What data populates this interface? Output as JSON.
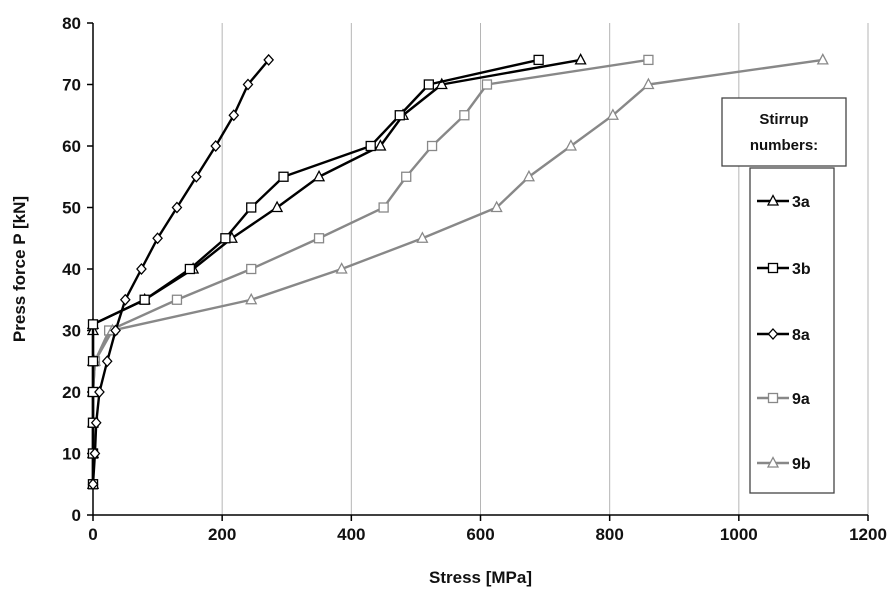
{
  "chart_data": {
    "type": "line",
    "xlabel": "Stress [MPa]",
    "ylabel": "Press force P [kN]",
    "xlim": [
      0,
      1200
    ],
    "ylim": [
      0,
      80
    ],
    "xticks": [
      0,
      200,
      400,
      600,
      800,
      1000,
      1200
    ],
    "yticks": [
      0,
      10,
      20,
      30,
      40,
      50,
      60,
      70,
      80
    ],
    "xtick_labels": [
      "0",
      "200",
      "400",
      "600",
      "800",
      "1000",
      "1200"
    ],
    "ytick_labels": [
      "0",
      "10",
      "20",
      "30",
      "40",
      "50",
      "60",
      "70",
      "80"
    ],
    "grid": "vertical",
    "legend": {
      "title_lines": [
        "Stirrup",
        "numbers:"
      ],
      "placement": "right"
    },
    "series": [
      {
        "name": "3a",
        "color": "#000000",
        "marker": "triangle",
        "points": [
          [
            0,
            5
          ],
          [
            0,
            10
          ],
          [
            0,
            15
          ],
          [
            0,
            20
          ],
          [
            0,
            25
          ],
          [
            0,
            30
          ],
          [
            0,
            31
          ],
          [
            80,
            35
          ],
          [
            155,
            40
          ],
          [
            215,
            45
          ],
          [
            285,
            50
          ],
          [
            350,
            55
          ],
          [
            445,
            60
          ],
          [
            480,
            65
          ],
          [
            540,
            70
          ],
          [
            755,
            74
          ]
        ]
      },
      {
        "name": "3b",
        "color": "#000000",
        "marker": "square",
        "points": [
          [
            0,
            5
          ],
          [
            0,
            10
          ],
          [
            0,
            15
          ],
          [
            0,
            20
          ],
          [
            0,
            25
          ],
          [
            0,
            31
          ],
          [
            80,
            35
          ],
          [
            150,
            40
          ],
          [
            205,
            45
          ],
          [
            245,
            50
          ],
          [
            295,
            55
          ],
          [
            430,
            60
          ],
          [
            475,
            65
          ],
          [
            520,
            70
          ],
          [
            690,
            74
          ]
        ]
      },
      {
        "name": "8a",
        "color": "#000000",
        "marker": "diamond",
        "points": [
          [
            0,
            5
          ],
          [
            3,
            10
          ],
          [
            5,
            15
          ],
          [
            10,
            20
          ],
          [
            22,
            25
          ],
          [
            35,
            30
          ],
          [
            50,
            35
          ],
          [
            75,
            40
          ],
          [
            100,
            45
          ],
          [
            130,
            50
          ],
          [
            160,
            55
          ],
          [
            190,
            60
          ],
          [
            218,
            65
          ],
          [
            240,
            70
          ],
          [
            272,
            74
          ]
        ]
      },
      {
        "name": "9a",
        "color": "#888888",
        "marker": "square",
        "points": [
          [
            0,
            5
          ],
          [
            0,
            10
          ],
          [
            0,
            15
          ],
          [
            0,
            20
          ],
          [
            3,
            25
          ],
          [
            25,
            30
          ],
          [
            130,
            35
          ],
          [
            245,
            40
          ],
          [
            350,
            45
          ],
          [
            450,
            50
          ],
          [
            485,
            55
          ],
          [
            525,
            60
          ],
          [
            575,
            65
          ],
          [
            610,
            70
          ],
          [
            860,
            74
          ]
        ]
      },
      {
        "name": "9b",
        "color": "#888888",
        "marker": "triangle",
        "points": [
          [
            0,
            5
          ],
          [
            0,
            10
          ],
          [
            0,
            15
          ],
          [
            0,
            20
          ],
          [
            3,
            25
          ],
          [
            30,
            30
          ],
          [
            245,
            35
          ],
          [
            385,
            40
          ],
          [
            510,
            45
          ],
          [
            625,
            50
          ],
          [
            675,
            55
          ],
          [
            740,
            60
          ],
          [
            805,
            65
          ],
          [
            860,
            70
          ],
          [
            1130,
            74
          ]
        ]
      }
    ]
  }
}
